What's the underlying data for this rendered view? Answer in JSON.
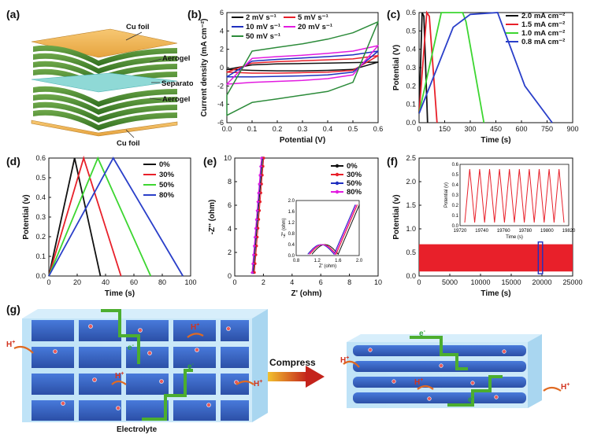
{
  "labels": {
    "a": "(a)",
    "b": "(b)",
    "c": "(c)",
    "d": "(d)",
    "e": "(e)",
    "f": "(f)",
    "g": "(g)"
  },
  "panel_a": {
    "cu_top": "Cu foil",
    "aerogel_top": "Aerogel",
    "separator": "Separator",
    "aerogel_bottom": "Aerogel",
    "cu_bottom": "Cu foil"
  },
  "panel_g": {
    "compress": "Compress",
    "electrolyte": "Electrolyte",
    "h_plus": "H",
    "plus_sup": "+",
    "e_minus": "e",
    "minus_sup": "-"
  },
  "colors": {
    "black": "#111111",
    "red": "#e8202a",
    "blue": "#1f2fbf",
    "green": "#1ea64a",
    "magenta": "#e21be0",
    "lime": "#3dd631",
    "navy": "#2a3fc9",
    "darkgreen": "#2c8b3a"
  },
  "chart_data": [
    {
      "id": "b",
      "type": "line",
      "xlabel": "Potential (V)",
      "ylabel": "Current density (mA cm⁻²)",
      "xlim": [
        0,
        0.6
      ],
      "ylim": [
        -6,
        6
      ],
      "xticks": [
        "0.0",
        "0.1",
        "0.2",
        "0.3",
        "0.4",
        "0.5",
        "0.6"
      ],
      "yticks": [
        "-6",
        "-4",
        "-2",
        "0",
        "2",
        "4",
        "6"
      ],
      "legend": [
        "2 mV s⁻¹",
        "5 mV s⁻¹",
        "10 mV s⁻¹",
        "20 mV s⁻¹",
        "50 mV s⁻¹"
      ],
      "series": [
        {
          "name": "2 mV s⁻¹",
          "color": "#111111",
          "upper": [
            -0.2,
            0.3,
            0.4,
            0.45,
            0.5,
            0.55,
            0.6
          ],
          "lower": [
            -0.2,
            -0.3,
            -0.35,
            -0.35,
            -0.3,
            -0.2,
            0.6
          ]
        },
        {
          "name": "5 mV s⁻¹",
          "color": "#e8202a",
          "upper": [
            -0.5,
            0.5,
            0.65,
            0.75,
            0.85,
            0.95,
            1.3
          ],
          "lower": [
            -0.5,
            -0.6,
            -0.6,
            -0.55,
            -0.5,
            -0.3,
            1.3
          ]
        },
        {
          "name": "10 mV s⁻¹",
          "color": "#1f2fbf",
          "upper": [
            -1,
            0.7,
            0.9,
            1.05,
            1.2,
            1.4,
            1.8
          ],
          "lower": [
            -1,
            -1.0,
            -0.95,
            -0.9,
            -0.8,
            -0.5,
            1.8
          ]
        },
        {
          "name": "20 mV s⁻¹",
          "color": "#e21be0",
          "upper": [
            -1.8,
            1.0,
            1.2,
            1.35,
            1.55,
            1.8,
            2.4
          ],
          "lower": [
            -1.8,
            -1.6,
            -1.5,
            -1.4,
            -1.2,
            -0.8,
            2.4
          ]
        },
        {
          "name": "50 mV s⁻¹",
          "color": "#2c8b3a",
          "upper": [
            -3,
            1.8,
            2.2,
            2.6,
            3.1,
            3.8,
            5.0
          ],
          "lower": [
            -5.2,
            -3.8,
            -3.4,
            -3.0,
            -2.6,
            -1.6,
            5.0
          ]
        }
      ]
    },
    {
      "id": "c",
      "type": "line",
      "xlabel": "Time (s)",
      "ylabel": "Potential (V)",
      "xlim": [
        0,
        900
      ],
      "ylim": [
        0,
        0.6
      ],
      "xticks": [
        "0",
        "150",
        "300",
        "450",
        "600",
        "750",
        "900"
      ],
      "yticks": [
        "0.0",
        "0.1",
        "0.2",
        "0.3",
        "0.4",
        "0.5",
        "0.6"
      ],
      "legend": [
        "2.0 mA cm⁻²",
        "1.5 mA cm⁻²",
        "1.0 mA cm⁻²",
        "0.8 mA cm⁻²"
      ],
      "series": [
        {
          "name": "2.0 mA cm⁻²",
          "color": "#111111",
          "points": [
            [
              0,
              0.05
            ],
            [
              18,
              0.6
            ],
            [
              28,
              0.58
            ],
            [
              50,
              0
            ]
          ]
        },
        {
          "name": "1.5 mA cm⁻²",
          "color": "#e8202a",
          "points": [
            [
              0,
              0.05
            ],
            [
              45,
              0.6
            ],
            [
              60,
              0.58
            ],
            [
              105,
              0
            ]
          ]
        },
        {
          "name": "1.0 mA cm⁻²",
          "color": "#3dd631",
          "points": [
            [
              0,
              0.05
            ],
            [
              130,
              0.6
            ],
            [
              255,
              0.6
            ],
            [
              275,
              0.55
            ],
            [
              380,
              0
            ]
          ]
        },
        {
          "name": "0.8 mA cm⁻²",
          "color": "#2a3fc9",
          "points": [
            [
              0,
              0.05
            ],
            [
              200,
              0.52
            ],
            [
              300,
              0.59
            ],
            [
              460,
              0.6
            ],
            [
              480,
              0.55
            ],
            [
              620,
              0.2
            ],
            [
              780,
              0
            ]
          ]
        }
      ]
    },
    {
      "id": "d",
      "type": "line",
      "xlabel": "Time (s)",
      "ylabel": "Potential (v)",
      "xlim": [
        0,
        110
      ],
      "ylim": [
        0,
        0.6
      ],
      "xticks": [
        "0",
        "20",
        "40",
        "60",
        "80",
        "100"
      ],
      "yticks": [
        "0.0",
        "0.1",
        "0.2",
        "0.3",
        "0.4",
        "0.5",
        "0.6"
      ],
      "legend": [
        "0%",
        "30%",
        "50%",
        "80%"
      ],
      "series": [
        {
          "name": "0%",
          "color": "#111111",
          "points": [
            [
              0,
              0
            ],
            [
              20,
              0.6
            ],
            [
              40,
              0
            ]
          ]
        },
        {
          "name": "30%",
          "color": "#e8202a",
          "points": [
            [
              0,
              0
            ],
            [
              27,
              0.6
            ],
            [
              56,
              0
            ]
          ]
        },
        {
          "name": "50%",
          "color": "#3dd631",
          "points": [
            [
              0,
              0
            ],
            [
              38,
              0.6
            ],
            [
              79,
              0
            ]
          ]
        },
        {
          "name": "80%",
          "color": "#2a3fc9",
          "points": [
            [
              0,
              0
            ],
            [
              50,
              0.6
            ],
            [
              104,
              0
            ]
          ]
        }
      ]
    },
    {
      "id": "e",
      "type": "scatter",
      "xlabel": "Z' (ohm)",
      "ylabel": "-Z'' (ohm)",
      "xlim": [
        0,
        10
      ],
      "ylim": [
        0,
        10
      ],
      "xticks": [
        "0",
        "2",
        "4",
        "6",
        "8",
        "10"
      ],
      "yticks": [
        "0",
        "2",
        "4",
        "6",
        "8",
        "10"
      ],
      "legend": [
        "0%",
        "30%",
        "50%",
        "80%"
      ],
      "inset": {
        "xlabel": "Z' (ohm)",
        "ylabel": "-Z'' (ohm)",
        "xticks": [
          "0.8",
          "1.2",
          "1.6",
          "2.0"
        ],
        "yticks": [
          "0.0",
          "0.4",
          "0.8",
          "1.2",
          "1.6",
          "2.0"
        ]
      },
      "series": [
        {
          "name": "0%",
          "color": "#111111",
          "marker": "square"
        },
        {
          "name": "30%",
          "color": "#e8202a",
          "marker": "circle"
        },
        {
          "name": "50%",
          "color": "#1f2fbf",
          "marker": "triangle"
        },
        {
          "name": "80%",
          "color": "#e21be0",
          "marker": "diamond"
        }
      ]
    },
    {
      "id": "f",
      "type": "line",
      "xlabel": "Time (s)",
      "ylabel": "Potential (v)",
      "xlim": [
        0,
        25000
      ],
      "ylim": [
        -0.1,
        2.5
      ],
      "xticks": [
        "0",
        "5000",
        "10000",
        "15000",
        "20000",
        "25000"
      ],
      "yticks": [
        "0.0",
        "0.5",
        "1.0",
        "1.5",
        "2.0",
        "2.5"
      ],
      "inset": {
        "xlabel": "Time (s)",
        "ylabel": "Potential (v)",
        "xticks": [
          "19720",
          "19740",
          "19760",
          "19780",
          "19800",
          "19820"
        ],
        "yticks": [
          "0.0",
          "0.1",
          "0.2",
          "0.3",
          "0.4",
          "0.5",
          "0.6"
        ],
        "cycles": 10
      }
    }
  ]
}
